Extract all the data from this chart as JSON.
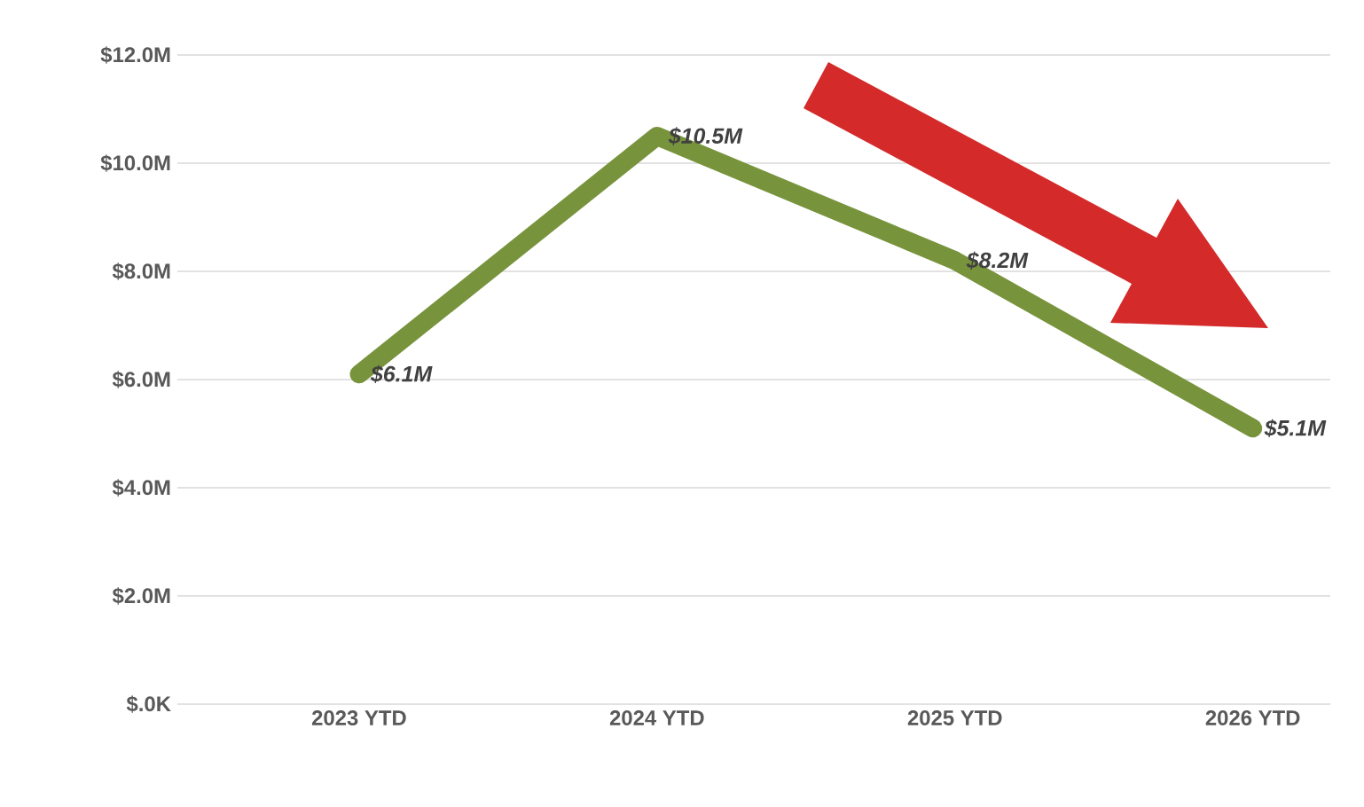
{
  "chart_data": {
    "type": "line",
    "categories": [
      "2023 YTD",
      "2024 YTD",
      "2025 YTD",
      "2026 YTD"
    ],
    "series": [
      {
        "color": "#77933c",
        "values": [
          6.1,
          10.5,
          8.2,
          5.1
        ],
        "value_labels": [
          "$6.1M",
          "$10.5M",
          "$8.2M",
          "$5.1M"
        ]
      }
    ],
    "ylim": [
      0,
      12
    ],
    "yticks": [
      {
        "value": 0,
        "label": "$.0K"
      },
      {
        "value": 2,
        "label": "$2.0M"
      },
      {
        "value": 4,
        "label": "$4.0M"
      },
      {
        "value": 6,
        "label": "$6.0M"
      },
      {
        "value": 8,
        "label": "$8.0M"
      },
      {
        "value": 10,
        "label": "$10.0M"
      },
      {
        "value": 12,
        "label": "$12.0M"
      }
    ],
    "grid": "y",
    "marker": "none",
    "line_style": "solid"
  }
}
